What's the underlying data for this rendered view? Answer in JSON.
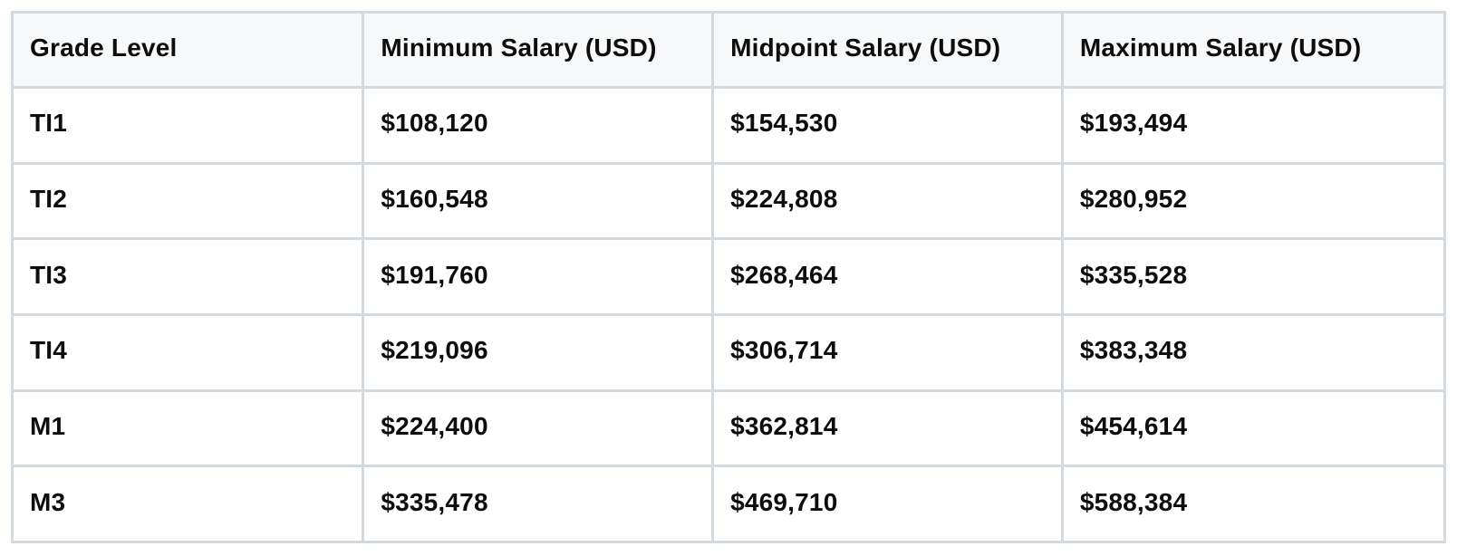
{
  "table": {
    "columns": [
      "Grade Level",
      "Minimum Salary (USD)",
      "Midpoint Salary (USD)",
      "Maximum Salary (USD)"
    ],
    "rows": [
      [
        "TI1",
        "$108,120",
        "$154,530",
        "$193,494"
      ],
      [
        "TI2",
        "$160,548",
        "$224,808",
        "$280,952"
      ],
      [
        "TI3",
        "$191,760",
        "$268,464",
        "$335,528"
      ],
      [
        "TI4",
        "$219,096",
        "$306,714",
        "$383,348"
      ],
      [
        "M1",
        "$224,400",
        "$362,814",
        "$454,614"
      ],
      [
        "M3",
        "$335,478",
        "$469,710",
        "$588,384"
      ]
    ]
  },
  "colors": {
    "border": "#d2d9df",
    "header_background": "#f6f8f9",
    "text": "#0d0d0d",
    "page_background": "#ffffff"
  }
}
